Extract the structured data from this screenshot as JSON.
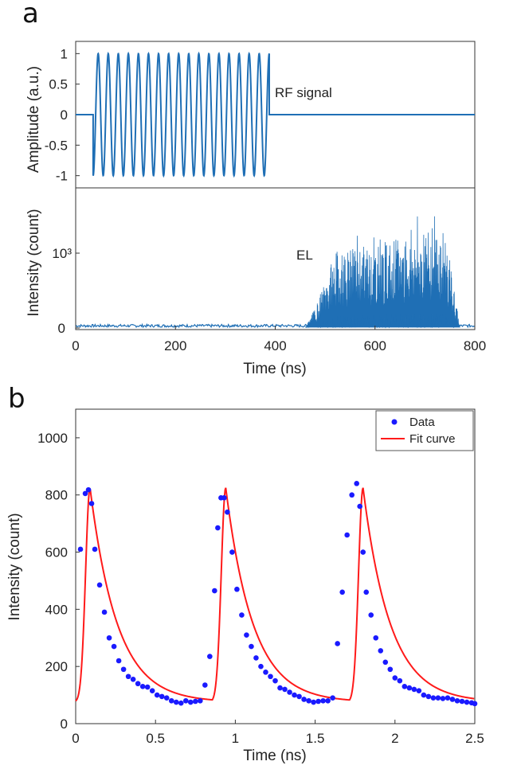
{
  "panels": {
    "a_label": "a",
    "b_label": "b"
  },
  "chart_data": [
    {
      "id": "a-top",
      "type": "line",
      "xlim": [
        0,
        800
      ],
      "ylim": [
        -1.2,
        1.2
      ],
      "ylabel": "Amplitude (a.u.)",
      "xlabel": "",
      "yticks": [
        1,
        0.5,
        0,
        -0.5,
        -1
      ],
      "ytick_labels": [
        "1",
        "0.5",
        "0",
        "-0.5",
        "-1"
      ],
      "annotation": "RF signal",
      "series": [
        {
          "kind": "burst-sine",
          "start": 35,
          "end": 388,
          "cycles": 17.5,
          "amplitude": 1,
          "baseline": 0,
          "color": "#1f6fb5"
        }
      ],
      "grid": false
    },
    {
      "id": "a-bottom",
      "type": "area",
      "xlim": [
        0,
        800
      ],
      "ylabel": "Intensity (count)",
      "xlabel": "Time (ns)",
      "ytick_labels": [
        "0",
        "10³"
      ],
      "xticks": [
        0,
        200,
        400,
        600,
        800
      ],
      "xtick_labels": [
        "0",
        "200",
        "400",
        "600",
        "800"
      ],
      "annotation": "EL",
      "series": [
        {
          "kind": "electroluminescence",
          "rise_start": 460,
          "plateau_start": 520,
          "fall_end": 750,
          "color": "#1f6fb5"
        }
      ],
      "grid": false
    },
    {
      "id": "b",
      "type": "scatter",
      "xlim": [
        0,
        2.5
      ],
      "ylim": [
        0,
        1100
      ],
      "xlabel": "Time (ns)",
      "ylabel": "Intensity (count)",
      "xticks": [
        0,
        0.5,
        1,
        1.5,
        2,
        2.5
      ],
      "xtick_labels": [
        "0",
        "0.5",
        "1",
        "1.5",
        "2",
        "2.5"
      ],
      "yticks": [
        0,
        200,
        400,
        600,
        800,
        1000
      ],
      "ytick_labels": [
        "0",
        "200",
        "400",
        "600",
        "800",
        "1000"
      ],
      "legend": {
        "position": "top-right",
        "entries": [
          {
            "label": "Data",
            "marker": "dot",
            "color": "#1a1aff"
          },
          {
            "label": "Fit curve",
            "marker": "line",
            "color": "#ff1a1a"
          }
        ]
      },
      "series": [
        {
          "name": "Data",
          "kind": "points",
          "color": "#1a1aff",
          "x": [
            0.03,
            0.06,
            0.08,
            0.1,
            0.12,
            0.15,
            0.18,
            0.21,
            0.24,
            0.27,
            0.3,
            0.33,
            0.36,
            0.39,
            0.42,
            0.45,
            0.48,
            0.51,
            0.54,
            0.57,
            0.6,
            0.63,
            0.66,
            0.69,
            0.72,
            0.75,
            0.78,
            0.81,
            0.84,
            0.87,
            0.89,
            0.91,
            0.93,
            0.95,
            0.98,
            1.01,
            1.04,
            1.07,
            1.1,
            1.13,
            1.16,
            1.19,
            1.22,
            1.25,
            1.28,
            1.31,
            1.34,
            1.37,
            1.4,
            1.43,
            1.46,
            1.49,
            1.52,
            1.55,
            1.58,
            1.61,
            1.64,
            1.67,
            1.7,
            1.73,
            1.76,
            1.78,
            1.8,
            1.82,
            1.85,
            1.88,
            1.91,
            1.94,
            1.97,
            2.0,
            2.03,
            2.06,
            2.09,
            2.12,
            2.15,
            2.18,
            2.21,
            2.24,
            2.27,
            2.3,
            2.33,
            2.36,
            2.39,
            2.42,
            2.45,
            2.48,
            2.5
          ],
          "y": [
            610,
            805,
            818,
            770,
            610,
            485,
            390,
            300,
            270,
            220,
            190,
            165,
            155,
            140,
            130,
            128,
            115,
            100,
            95,
            90,
            80,
            75,
            72,
            80,
            75,
            78,
            80,
            135,
            235,
            465,
            685,
            790,
            790,
            740,
            600,
            470,
            380,
            310,
            270,
            230,
            200,
            180,
            165,
            150,
            125,
            120,
            110,
            100,
            95,
            85,
            80,
            75,
            78,
            80,
            80,
            90,
            280,
            460,
            660,
            800,
            840,
            760,
            600,
            460,
            380,
            300,
            255,
            215,
            190,
            160,
            150,
            130,
            125,
            120,
            115,
            100,
            95,
            90,
            90,
            88,
            90,
            85,
            80,
            78,
            75,
            73,
            70
          ]
        },
        {
          "name": "Fit curve",
          "kind": "line",
          "color": "#ff1a1a",
          "peaks": [
            0.09,
            0.94,
            1.8
          ],
          "peak_value": 825,
          "baseline": 75
        }
      ],
      "grid": false
    }
  ]
}
